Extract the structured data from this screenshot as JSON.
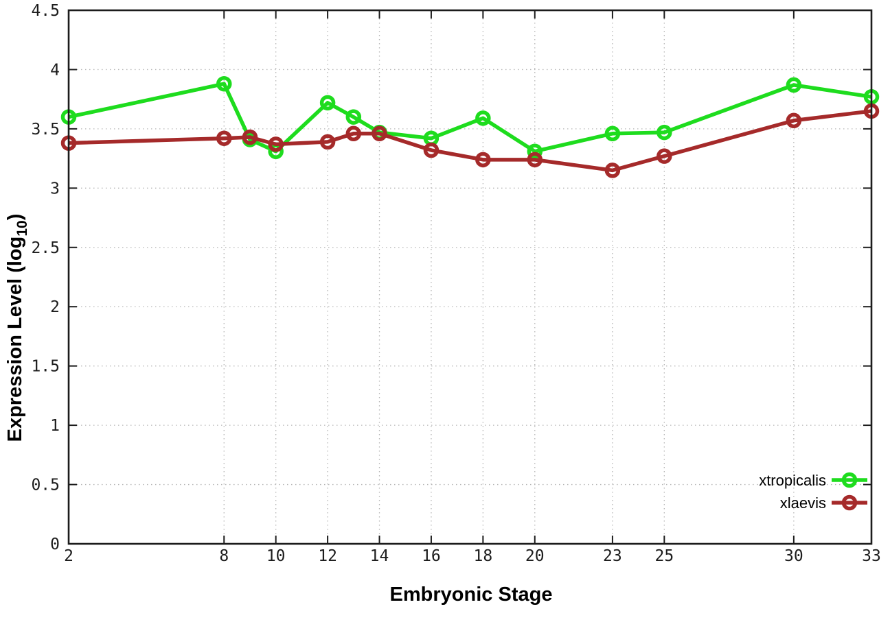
{
  "figure": {
    "background": "#ffffff"
  },
  "chart_data": {
    "type": "line",
    "title": "",
    "xlabel": "Embryonic Stage",
    "ylabel": "Expression Level (log10)",
    "ylabel_parts": {
      "main": "Expression Level (log",
      "subscript": "10",
      "suffix": ")"
    },
    "xlim": [
      2,
      33
    ],
    "ylim": [
      0,
      4.5
    ],
    "x_ticks": [
      2,
      8,
      10,
      12,
      14,
      16,
      18,
      20,
      23,
      25,
      30,
      33
    ],
    "y_ticks": [
      0,
      0.5,
      1,
      1.5,
      2,
      2.5,
      3,
      3.5,
      4,
      4.5
    ],
    "y_tick_labels": [
      "0",
      "0.5",
      "1",
      "1.5",
      "2",
      "2.5",
      "3",
      "3.5",
      "4",
      "4.5"
    ],
    "grid": true,
    "grid_style": "dotted",
    "marker": "open-circle",
    "legend": {
      "position": "inside-bottom-right"
    },
    "x": [
      2,
      8,
      9,
      10,
      12,
      13,
      14,
      16,
      18,
      20,
      23,
      25,
      30,
      33
    ],
    "series": [
      {
        "name": "xtropicalis",
        "color": "#1edc1e",
        "values": [
          3.6,
          3.88,
          3.41,
          3.31,
          3.72,
          3.6,
          3.47,
          3.42,
          3.59,
          3.31,
          3.46,
          3.47,
          3.87,
          3.77
        ]
      },
      {
        "name": "xlaevis",
        "color": "#a52a2a",
        "values": [
          3.38,
          3.42,
          3.43,
          3.37,
          3.39,
          3.46,
          3.46,
          3.32,
          3.24,
          3.24,
          3.15,
          3.27,
          3.57,
          3.65
        ]
      }
    ],
    "axis_color": "#1c1c1c",
    "grid_color": "#b6b6b6"
  }
}
